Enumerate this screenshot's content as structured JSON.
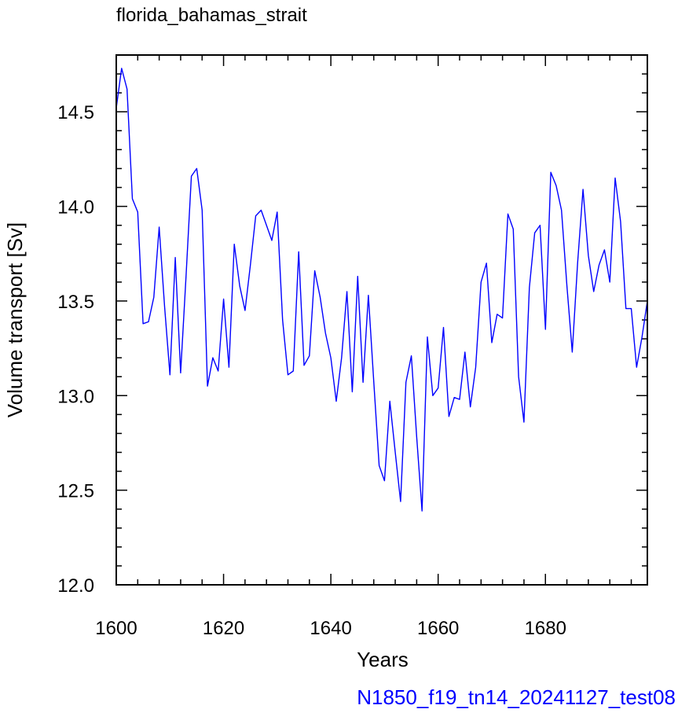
{
  "chart_data": {
    "type": "line",
    "title": "florida_bahamas_strait",
    "xlabel": "Years",
    "ylabel": "Volume transport [Sv]",
    "footer": "N1850_f19_tn14_20241127_test08",
    "xlim": [
      1600,
      1699
    ],
    "ylim": [
      12.0,
      14.8
    ],
    "x_ticks": [
      1600,
      1620,
      1640,
      1660,
      1680
    ],
    "y_ticks": [
      12.0,
      12.5,
      13.0,
      13.5,
      14.0,
      14.5
    ],
    "x_tick_labels": [
      "1600",
      "1620",
      "1640",
      "1660",
      "1680"
    ],
    "y_tick_labels": [
      "12.0",
      "12.5",
      "13.0",
      "13.5",
      "14.0",
      "14.5"
    ],
    "grid": false,
    "colors": {
      "line": "#0000ff",
      "footer": "#0000ff",
      "axes": "#000000"
    },
    "series": [
      {
        "x_start": 1600,
        "x_step": 1,
        "values": [
          14.52,
          14.73,
          14.62,
          14.04,
          13.97,
          13.38,
          13.39,
          13.52,
          13.89,
          13.47,
          13.11,
          13.73,
          13.12,
          13.63,
          14.16,
          14.2,
          13.98,
          13.05,
          13.2,
          13.13,
          13.51,
          13.15,
          13.8,
          13.58,
          13.45,
          13.69,
          13.95,
          13.98,
          13.9,
          13.82,
          13.97,
          13.4,
          13.11,
          13.13,
          13.76,
          13.16,
          13.21,
          13.66,
          13.52,
          13.33,
          13.2,
          12.97,
          13.2,
          13.55,
          13.02,
          13.63,
          13.07,
          13.53,
          13.07,
          12.63,
          12.55,
          12.97,
          12.7,
          12.44,
          13.07,
          13.21,
          12.78,
          12.39,
          13.31,
          13.0,
          13.04,
          13.36,
          12.89,
          12.99,
          12.98,
          13.23,
          12.94,
          13.15,
          13.6,
          13.7,
          13.28,
          13.43,
          13.41,
          13.96,
          13.88,
          13.1,
          12.86,
          13.57,
          13.86,
          13.9,
          13.35,
          14.18,
          14.11,
          13.98,
          13.58,
          13.23,
          13.7,
          14.09,
          13.74,
          13.55,
          13.69,
          13.77,
          13.6,
          14.15,
          13.92,
          13.46,
          13.46,
          13.15,
          13.31,
          13.5
        ]
      }
    ]
  }
}
